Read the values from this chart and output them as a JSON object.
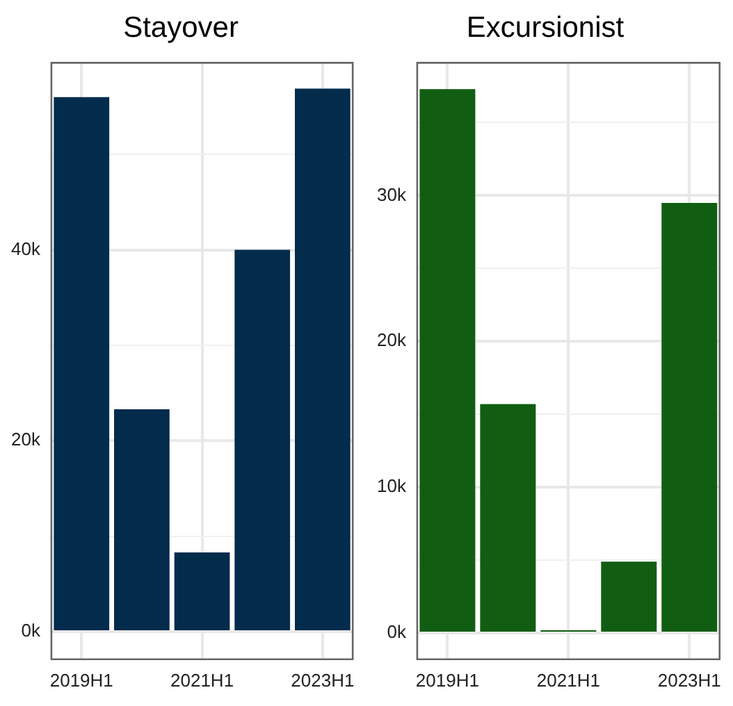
{
  "chart_data": [
    {
      "type": "bar",
      "title": "Stayover",
      "categories": [
        "2019H1",
        null,
        "2021H1",
        null,
        "2023H1"
      ],
      "values": [
        56000,
        23300,
        8300,
        40000,
        56900
      ],
      "color": "#022b4c",
      "ylim": [
        -2900,
        59600
      ],
      "yticks": [
        {
          "value": 0,
          "label": "0k"
        },
        {
          "value": 10000,
          "label": null
        },
        {
          "value": 20000,
          "label": "20k"
        },
        {
          "value": 30000,
          "label": null
        },
        {
          "value": 40000,
          "label": "40k"
        },
        {
          "value": 50000,
          "label": null
        }
      ],
      "grid": true,
      "legend": false
    },
    {
      "type": "bar",
      "title": "Excursionist",
      "categories": [
        "2019H1",
        null,
        "2021H1",
        null,
        "2023H1"
      ],
      "values": [
        37300,
        15700,
        100,
        4900,
        29500
      ],
      "color": "#115e13",
      "ylim": [
        -1800,
        39100
      ],
      "yticks": [
        {
          "value": 0,
          "label": "0k"
        },
        {
          "value": 5000,
          "label": null
        },
        {
          "value": 10000,
          "label": "10k"
        },
        {
          "value": 15000,
          "label": null
        },
        {
          "value": 20000,
          "label": "20k"
        },
        {
          "value": 25000,
          "label": null
        },
        {
          "value": 30000,
          "label": "30k"
        },
        {
          "value": 35000,
          "label": null
        }
      ],
      "grid": true,
      "legend": false
    }
  ]
}
